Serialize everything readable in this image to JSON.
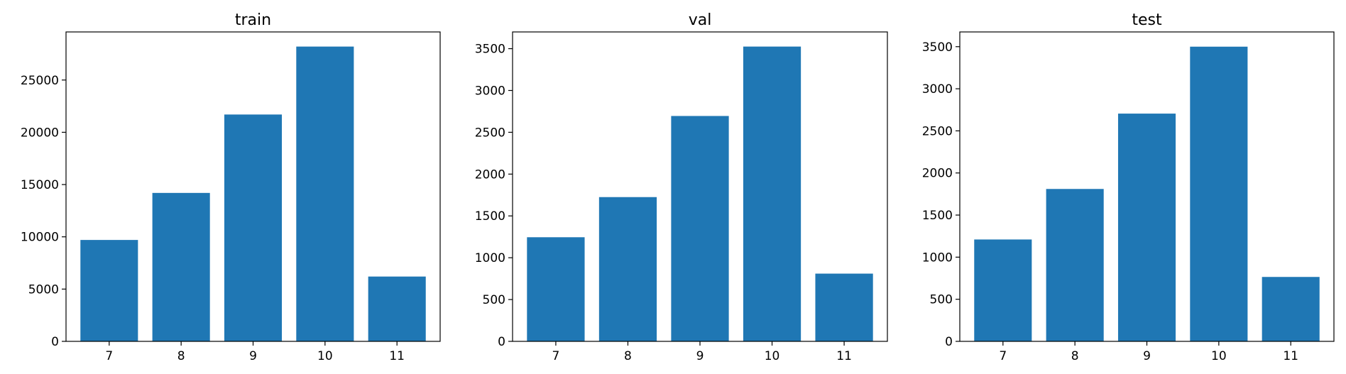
{
  "chart_data": [
    {
      "type": "bar",
      "title": "train",
      "categories": [
        "7",
        "8",
        "9",
        "10",
        "11"
      ],
      "values": [
        9700,
        14200,
        21700,
        28200,
        6200
      ],
      "yticks": [
        0,
        5000,
        10000,
        15000,
        20000,
        25000
      ],
      "ylim": [
        0,
        29600
      ],
      "xlabel": "",
      "ylabel": "",
      "color": "#1f77b4",
      "grid": false
    },
    {
      "type": "bar",
      "title": "val",
      "categories": [
        "7",
        "8",
        "9",
        "10",
        "11"
      ],
      "values": [
        1245,
        1725,
        2695,
        3525,
        810
      ],
      "yticks": [
        0,
        500,
        1000,
        1500,
        2000,
        2500,
        3000,
        3500
      ],
      "ylim": [
        0,
        3700
      ],
      "xlabel": "",
      "ylabel": "",
      "color": "#1f77b4",
      "grid": false
    },
    {
      "type": "bar",
      "title": "test",
      "categories": [
        "7",
        "8",
        "9",
        "10",
        "11"
      ],
      "values": [
        1210,
        1810,
        2705,
        3500,
        765
      ],
      "yticks": [
        0,
        500,
        1000,
        1500,
        2000,
        2500,
        3000,
        3500
      ],
      "ylim": [
        0,
        3675
      ],
      "xlabel": "",
      "ylabel": "",
      "color": "#1f77b4",
      "grid": false
    }
  ]
}
